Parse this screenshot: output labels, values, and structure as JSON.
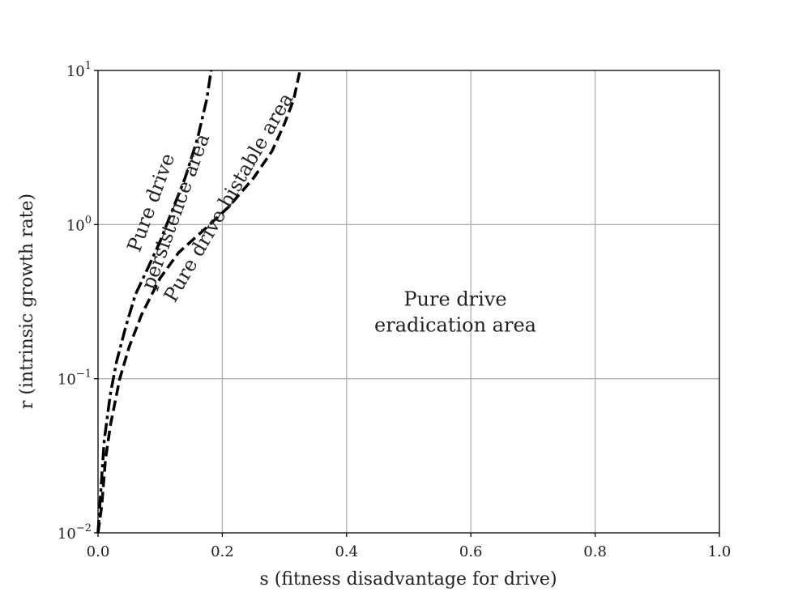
{
  "chart_data": {
    "type": "line",
    "title": "",
    "xlabel": "s (fitness disadvantage for drive)",
    "ylabel": "r (intrinsic growth rate)",
    "xlim": [
      0.0,
      1.0
    ],
    "ylim": [
      0.01,
      10
    ],
    "yscale": "log",
    "grid": true,
    "xticks": [
      {
        "value": 0.0,
        "label": "0.0"
      },
      {
        "value": 0.2,
        "label": "0.2"
      },
      {
        "value": 0.4,
        "label": "0.4"
      },
      {
        "value": 0.6,
        "label": "0.6"
      },
      {
        "value": 0.8,
        "label": "0.8"
      },
      {
        "value": 1.0,
        "label": "1.0"
      }
    ],
    "yticks": [
      {
        "value": 0.01,
        "base": "10",
        "exp": "−2"
      },
      {
        "value": 0.1,
        "base": "10",
        "exp": "−1"
      },
      {
        "value": 1,
        "base": "10",
        "exp": "0"
      },
      {
        "value": 10,
        "base": "10",
        "exp": "1"
      }
    ],
    "series": [
      {
        "style": "dashdot",
        "color": "#000000",
        "x": [
          0.0,
          0.005,
          0.01,
          0.02,
          0.03,
          0.045,
          0.06,
          0.08,
          0.1,
          0.12,
          0.14,
          0.16,
          0.175,
          0.182
        ],
        "y": [
          0.01,
          0.02,
          0.04,
          0.08,
          0.13,
          0.22,
          0.35,
          0.52,
          0.78,
          1.25,
          2.0,
          3.6,
          6.5,
          10
        ]
      },
      {
        "style": "dashed",
        "color": "#000000",
        "x": [
          0.0,
          0.006,
          0.012,
          0.02,
          0.035,
          0.05,
          0.07,
          0.1,
          0.13,
          0.17,
          0.21,
          0.25,
          0.28,
          0.3,
          0.315,
          0.325
        ],
        "y": [
          0.01,
          0.015,
          0.03,
          0.05,
          0.1,
          0.16,
          0.26,
          0.45,
          0.66,
          0.92,
          1.3,
          2.0,
          3.0,
          4.5,
          6.5,
          10
        ]
      }
    ],
    "annotations": [
      {
        "lines": [
          "Pure drive",
          "persistence area"
        ],
        "x": 0.105,
        "y": 1.3,
        "rotation": -70
      },
      {
        "lines": [
          "Pure drive bistable area"
        ],
        "x": 0.21,
        "y": 1.5,
        "rotation": -60
      },
      {
        "lines": [
          "Pure drive",
          "eradication area"
        ],
        "x": 0.575,
        "y": 0.27,
        "rotation": 0
      }
    ]
  }
}
